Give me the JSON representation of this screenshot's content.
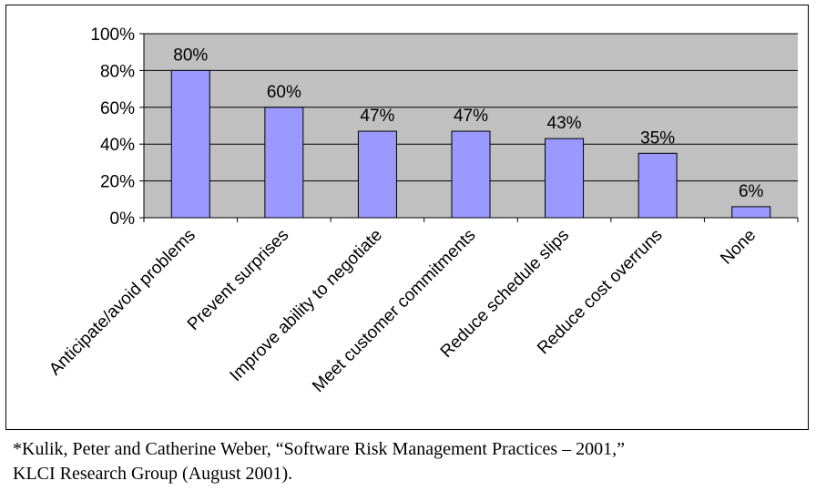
{
  "chart_data": {
    "type": "bar",
    "categories": [
      "Anticipate/avoid problems",
      "Prevent surprises",
      "Improve ability to negotiate",
      "Meet customer commitments",
      "Reduce schedule slips",
      "Reduce cost overruns",
      "None"
    ],
    "values": [
      80,
      60,
      47,
      47,
      43,
      35,
      6
    ],
    "data_labels": [
      "80%",
      "60%",
      "47%",
      "47%",
      "43%",
      "35%",
      "6%"
    ],
    "y_ticks": [
      0,
      20,
      40,
      60,
      80,
      100
    ],
    "y_tick_labels": [
      "0%",
      "20%",
      "40%",
      "60%",
      "80%",
      "100%"
    ],
    "ylim": [
      0,
      100
    ],
    "title": "",
    "xlabel": "",
    "ylabel": "",
    "grid": true,
    "colors": {
      "bar_fill": "#9999ff",
      "bar_stroke": "#000000",
      "plot_bg": "#c0c0c0",
      "gridline": "#000000"
    }
  },
  "footnote": {
    "line1": "*Kulik, Peter and Catherine Weber, “Software Risk Management Practices – 2001,”",
    "line2": "KLCI Research Group (August 2001)."
  }
}
